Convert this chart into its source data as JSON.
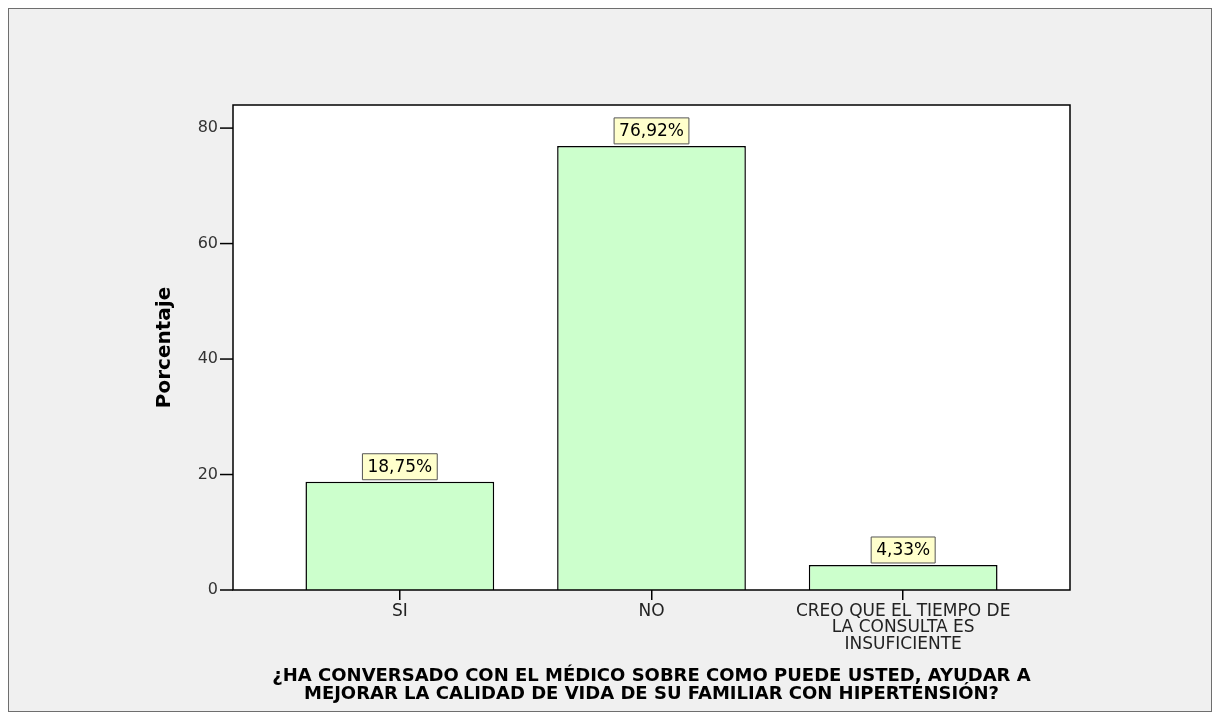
{
  "chart_data": {
    "type": "bar",
    "xlabel": "¿HA CONVERSADO CON EL MÉDICO SOBRE COMO PUEDE USTED, AYUDAR A MEJORAR LA CALIDAD DE VIDA DE SU FAMILIAR CON HIPERTENSIÓN?",
    "ylabel": "Porcentaje",
    "categories": [
      "SI",
      "NO",
      "CREO QUE EL TIEMPO DE LA CONSULTA ES INSUFICIENTE"
    ],
    "values": [
      18.75,
      76.92,
      4.33
    ],
    "color": "#ccffcc",
    "value_labels": [
      "18,75%",
      "76,92%",
      "4,33%"
    ],
    "ylim": [
      0,
      84
    ],
    "yticks": [
      0,
      20,
      40,
      60,
      80
    ]
  }
}
